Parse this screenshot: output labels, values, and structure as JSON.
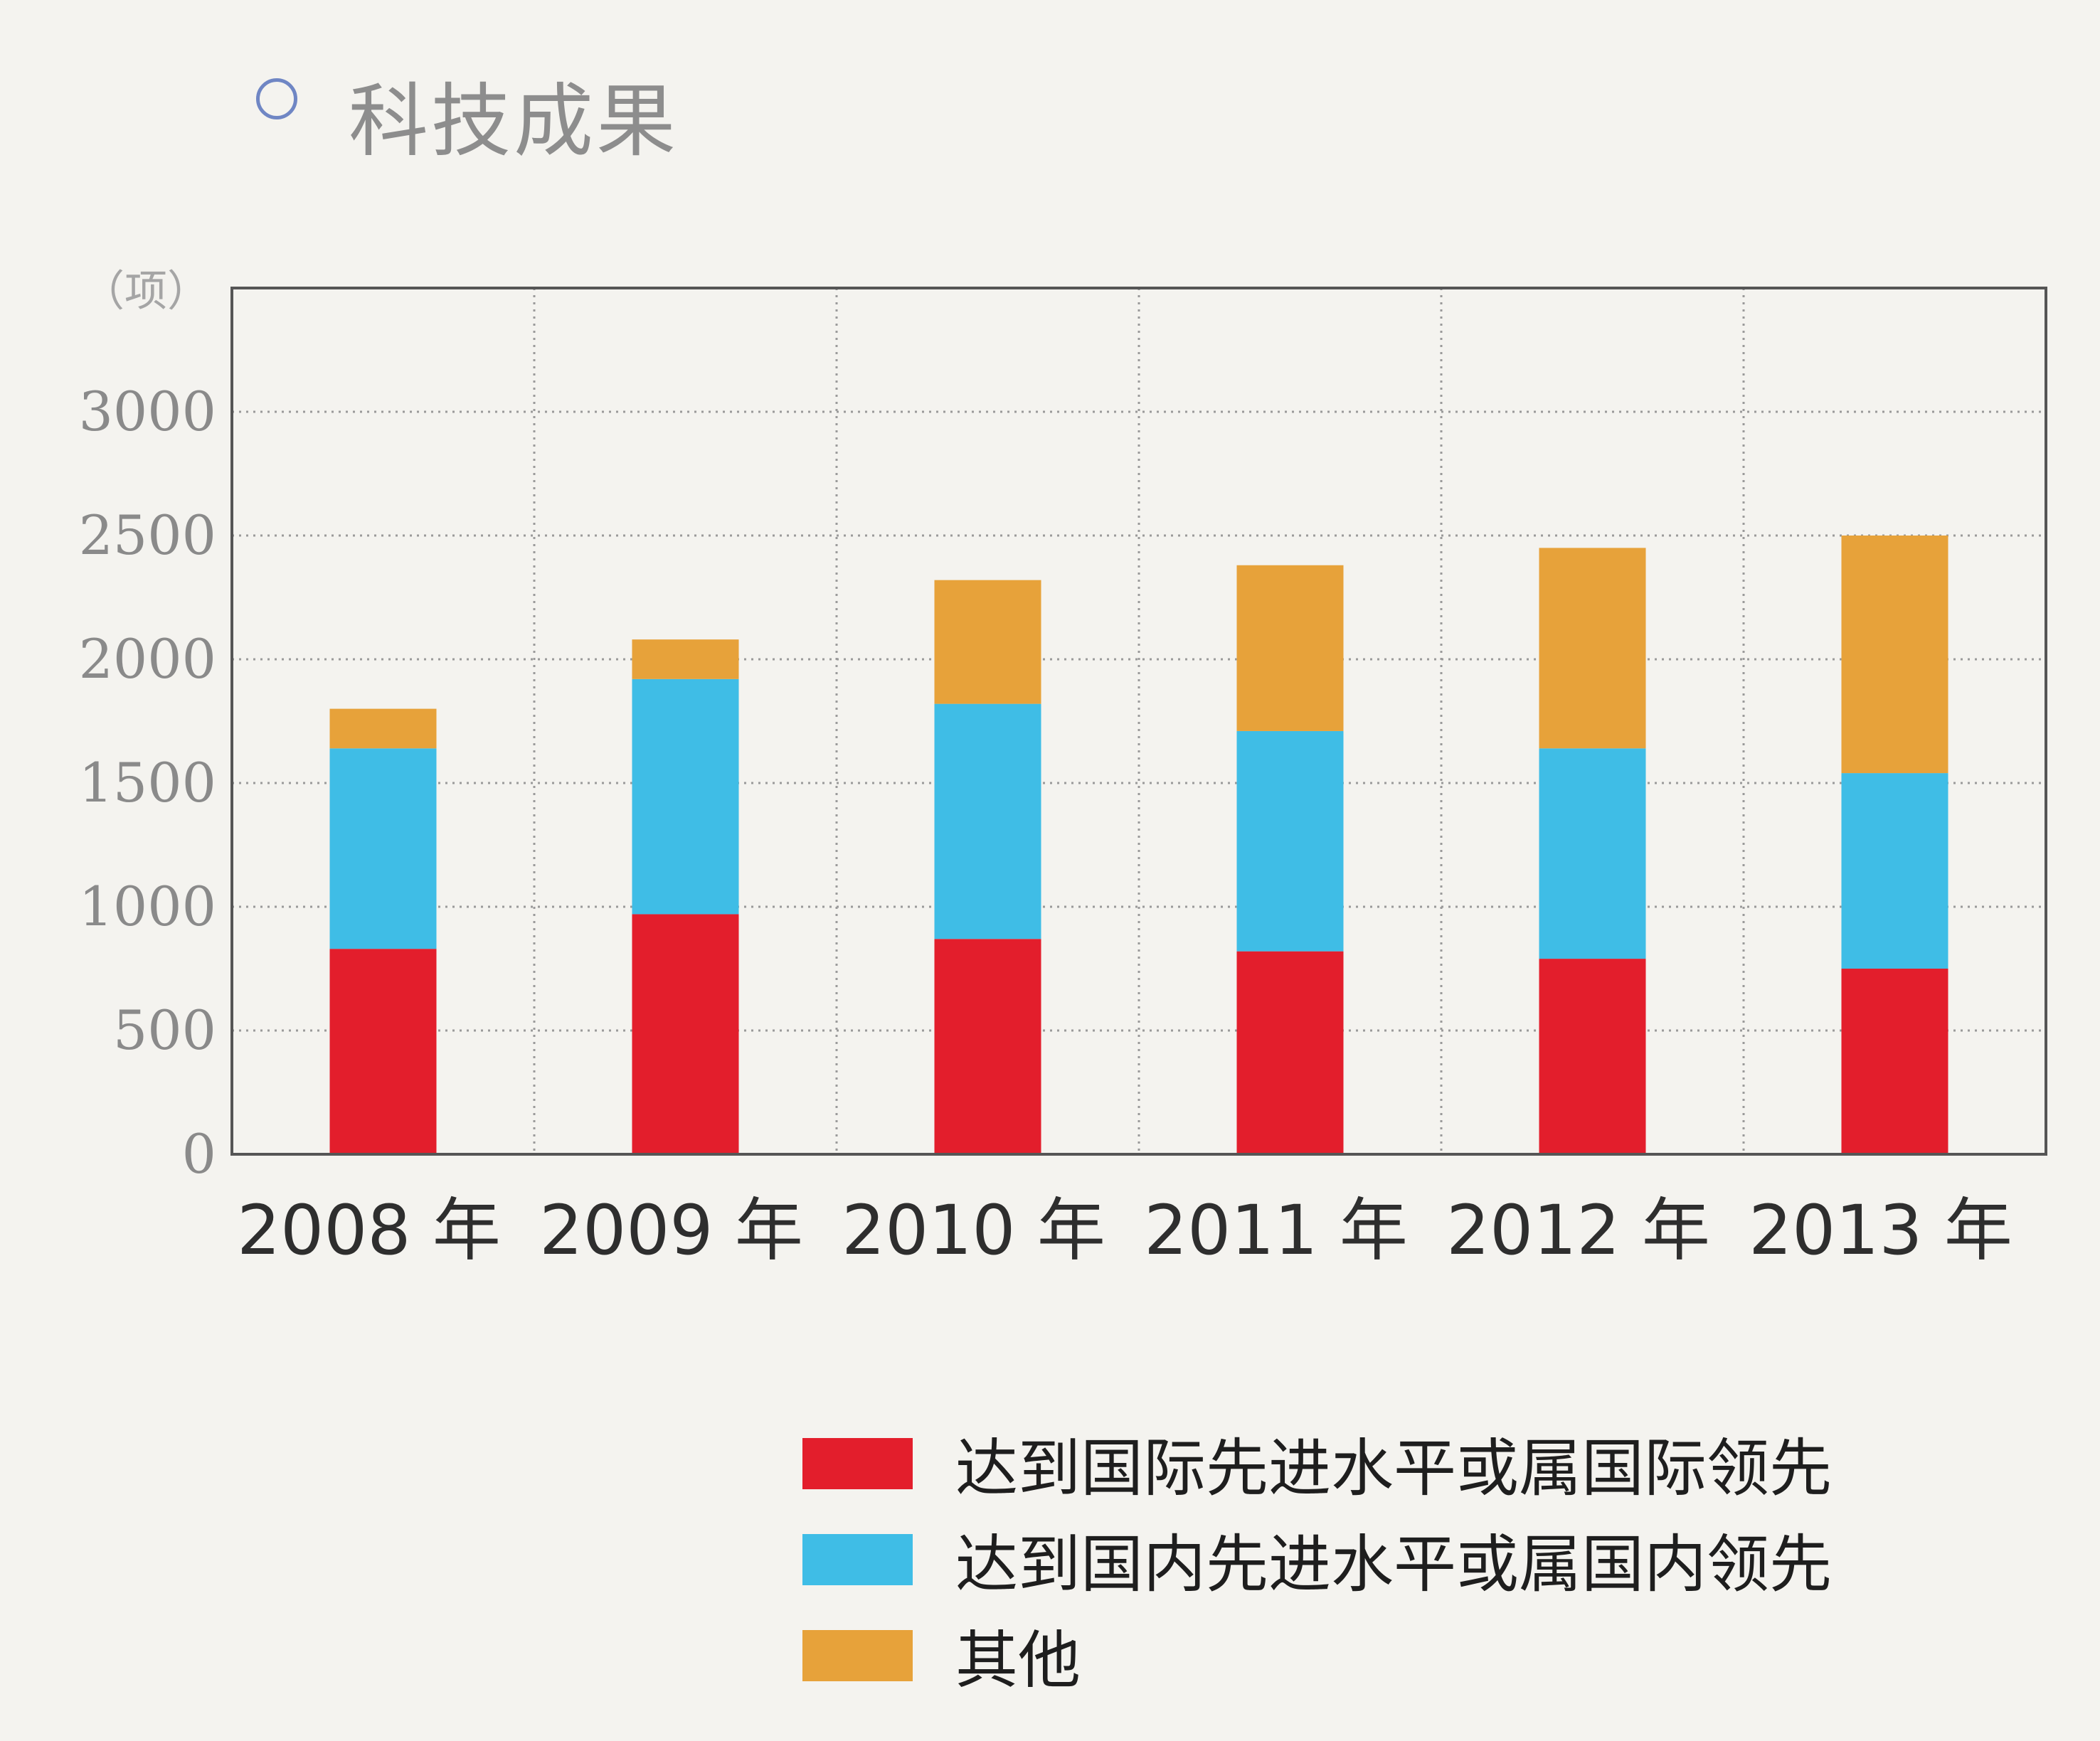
{
  "header": {
    "title": "科技成果",
    "icon": "circle-outline-icon"
  },
  "chart_data": {
    "type": "bar",
    "stacked": true,
    "title": "科技成果",
    "ylabel": "（项）",
    "xlabel": "",
    "categories": [
      "2008 年",
      "2009 年",
      "2010 年",
      "2011 年",
      "2012 年",
      "2013 年"
    ],
    "series": [
      {
        "name": "达到国际先进水平或属国际领先",
        "color": "#e31e2c",
        "values": [
          830,
          970,
          870,
          820,
          790,
          750
        ]
      },
      {
        "name": "达到国内先进水平或属国内领先",
        "color": "#3fbde6",
        "values": [
          810,
          950,
          950,
          890,
          850,
          790
        ]
      },
      {
        "name": "其他",
        "color": "#e7a23a",
        "values": [
          160,
          160,
          500,
          670,
          810,
          960
        ]
      }
    ],
    "ylim": [
      0,
      3500
    ],
    "yticks": [
      0,
      500,
      1000,
      1500,
      2000,
      2500,
      3000
    ],
    "grid": true,
    "legend_position": "bottom-right"
  }
}
